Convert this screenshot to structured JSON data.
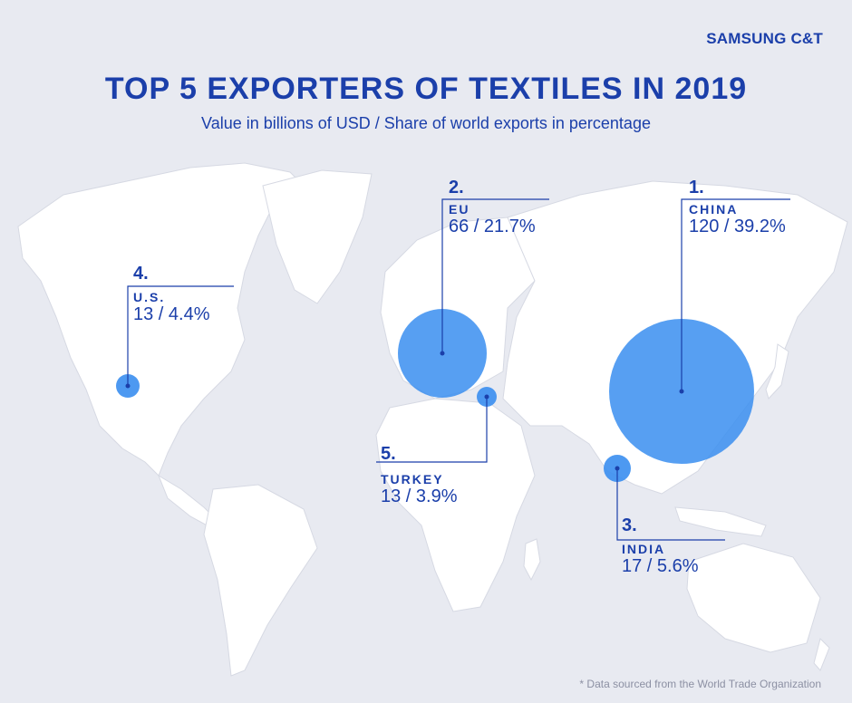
{
  "brand": "SAMSUNG C&T",
  "title": "TOP 5 EXPORTERS OF TEXTILES IN 2019",
  "subtitle": "Value in billions of USD / Share of world exports in percentage",
  "exporters": [
    {
      "rank": "1.",
      "country": "CHINA",
      "value": "120 / 39.2%",
      "value_usd_bn": 120,
      "share_pct": 39.2
    },
    {
      "rank": "2.",
      "country": "EU",
      "value": "66 / 21.7%",
      "value_usd_bn": 66,
      "share_pct": 21.7
    },
    {
      "rank": "3.",
      "country": "INDIA",
      "value": "17 / 5.6%",
      "value_usd_bn": 17,
      "share_pct": 5.6
    },
    {
      "rank": "4.",
      "country": "U.S.",
      "value": "13 / 4.4%",
      "value_usd_bn": 13,
      "share_pct": 4.4
    },
    {
      "rank": "5.",
      "country": "TURKEY",
      "value": "13 / 3.9%",
      "value_usd_bn": 13,
      "share_pct": 3.9
    }
  ],
  "footnote": "* Data sourced from the World Trade Organization",
  "colors": {
    "background": "#e8eaf1",
    "land": "#ffffff",
    "accent": "#1b3faa",
    "bubble": "#3a8ef0",
    "footnote": "#8c90a3"
  }
}
